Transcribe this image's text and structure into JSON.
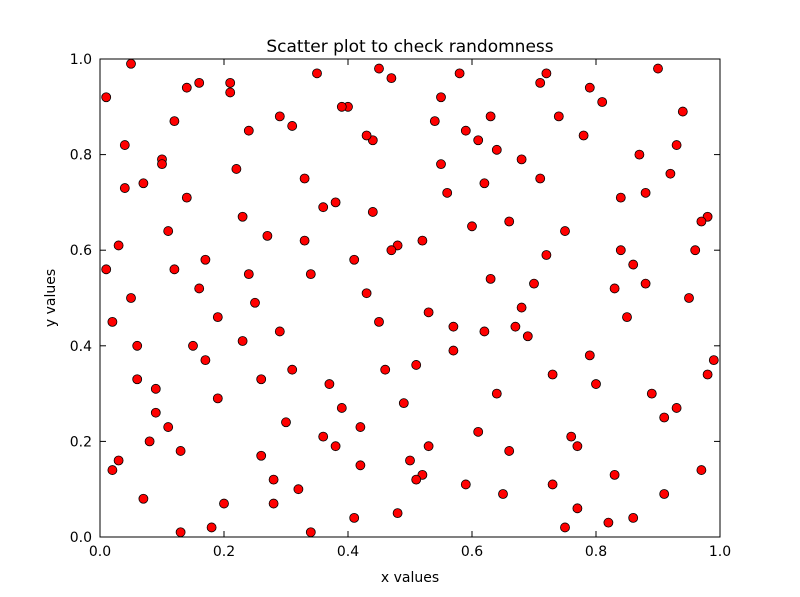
{
  "chart_data": {
    "type": "scatter",
    "title": "Scatter plot to check randomness",
    "xlabel": "x values",
    "ylabel": "y values",
    "color": "#ff0000",
    "edgecolor": "#000000",
    "xlim": [
      0,
      1
    ],
    "ylim": [
      0,
      1
    ],
    "xticks": [
      {
        "value": 0,
        "label": "0.0"
      },
      0.2,
      0.4,
      0.6,
      0.8,
      {
        "value": 1,
        "label": "1.0"
      }
    ],
    "yticks": [
      {
        "value": 0,
        "label": "0.0"
      },
      0.2,
      0.4,
      0.6,
      0.8,
      {
        "value": 1,
        "label": "1.0"
      }
    ],
    "x": [
      0.05,
      0.12,
      0.21,
      0.33,
      0.45,
      0.52,
      0.63,
      0.71,
      0.84,
      0.93,
      0.02,
      0.09,
      0.17,
      0.28,
      0.39,
      0.48,
      0.57,
      0.66,
      0.77,
      0.88,
      0.04,
      0.14,
      0.23,
      0.31,
      0.42,
      0.55,
      0.61,
      0.73,
      0.81,
      0.96,
      0.07,
      0.16,
      0.26,
      0.36,
      0.44,
      0.51,
      0.68,
      0.75,
      0.86,
      0.91,
      0.01,
      0.11,
      0.19,
      0.29,
      0.38,
      0.47,
      0.59,
      0.64,
      0.79,
      0.98,
      0.06,
      0.13,
      0.24,
      0.34,
      0.41,
      0.53,
      0.62,
      0.72,
      0.83,
      0.94,
      0.03,
      0.1,
      0.2,
      0.3,
      0.43,
      0.5,
      0.58,
      0.69,
      0.78,
      0.89,
      0.08,
      0.15,
      0.27,
      0.35,
      0.46,
      0.56,
      0.65,
      0.74,
      0.85,
      0.97,
      0.02,
      0.12,
      0.22,
      0.32,
      0.4,
      0.49,
      0.6,
      0.7,
      0.82,
      0.92,
      0.05,
      0.18,
      0.25,
      0.37,
      0.44,
      0.54,
      0.67,
      0.76,
      0.87,
      0.99,
      0.09,
      0.14,
      0.21,
      0.33,
      0.42,
      0.52,
      0.63,
      0.71,
      0.8,
      0.9,
      0.04,
      0.17,
      0.28,
      0.39,
      0.48,
      0.57,
      0.66,
      0.77,
      0.88,
      0.95,
      0.01,
      0.11,
      0.23,
      0.31,
      0.45,
      0.55,
      0.61,
      0.73,
      0.84,
      0.93,
      0.07,
      0.16,
      0.26,
      0.36,
      0.41,
      0.51,
      0.68,
      0.75,
      0.86,
      0.97,
      0.03,
      0.13,
      0.19,
      0.29,
      0.38,
      0.47,
      0.59,
      0.64,
      0.79,
      0.91,
      0.06,
      0.1,
      0.24,
      0.34,
      0.43,
      0.53,
      0.62,
      0.72,
      0.83,
      0.98
    ],
    "values": [
      0.99,
      0.87,
      0.93,
      0.75,
      0.98,
      0.62,
      0.88,
      0.95,
      0.71,
      0.82,
      0.45,
      0.31,
      0.58,
      0.12,
      0.27,
      0.05,
      0.39,
      0.66,
      0.19,
      0.53,
      0.73,
      0.94,
      0.41,
      0.86,
      0.15,
      0.78,
      0.22,
      0.34,
      0.91,
      0.6,
      0.08,
      0.52,
      0.17,
      0.69,
      0.83,
      0.36,
      0.48,
      0.02,
      0.57,
      0.25,
      0.92,
      0.64,
      0.29,
      0.43,
      0.7,
      0.96,
      0.11,
      0.81,
      0.38,
      0.67,
      0.33,
      0.18,
      0.85,
      0.55,
      0.04,
      0.47,
      0.74,
      0.59,
      0.13,
      0.89,
      0.61,
      0.79,
      0.07,
      0.24,
      0.51,
      0.16,
      0.97,
      0.42,
      0.84,
      0.3,
      0.2,
      0.4,
      0.63,
      0.97,
      0.35,
      0.72,
      0.09,
      0.88,
      0.46,
      0.14,
      0.14,
      0.56,
      0.77,
      0.1,
      0.9,
      0.28,
      0.65,
      0.53,
      0.03,
      0.76,
      0.5,
      0.02,
      0.49,
      0.32,
      0.68,
      0.87,
      0.44,
      0.21,
      0.8,
      0.37,
      0.26,
      0.71,
      0.95,
      0.62,
      0.23,
      0.13,
      0.54,
      0.75,
      0.32,
      0.98,
      0.82,
      0.37,
      0.07,
      0.9,
      0.61,
      0.44,
      0.18,
      0.06,
      0.72,
      0.5,
      0.56,
      0.23,
      0.67,
      0.35,
      0.45,
      0.92,
      0.83,
      0.11,
      0.6,
      0.27,
      0.74,
      0.95,
      0.33,
      0.21,
      0.58,
      0.12,
      0.79,
      0.64,
      0.04,
      0.66,
      0.16,
      0.01,
      0.46,
      0.88,
      0.19,
      0.6,
      0.85,
      0.3,
      0.94,
      0.09,
      0.4,
      0.78,
      0.55,
      0.01,
      0.84,
      0.19,
      0.43,
      0.97,
      0.52,
      0.34
    ]
  }
}
